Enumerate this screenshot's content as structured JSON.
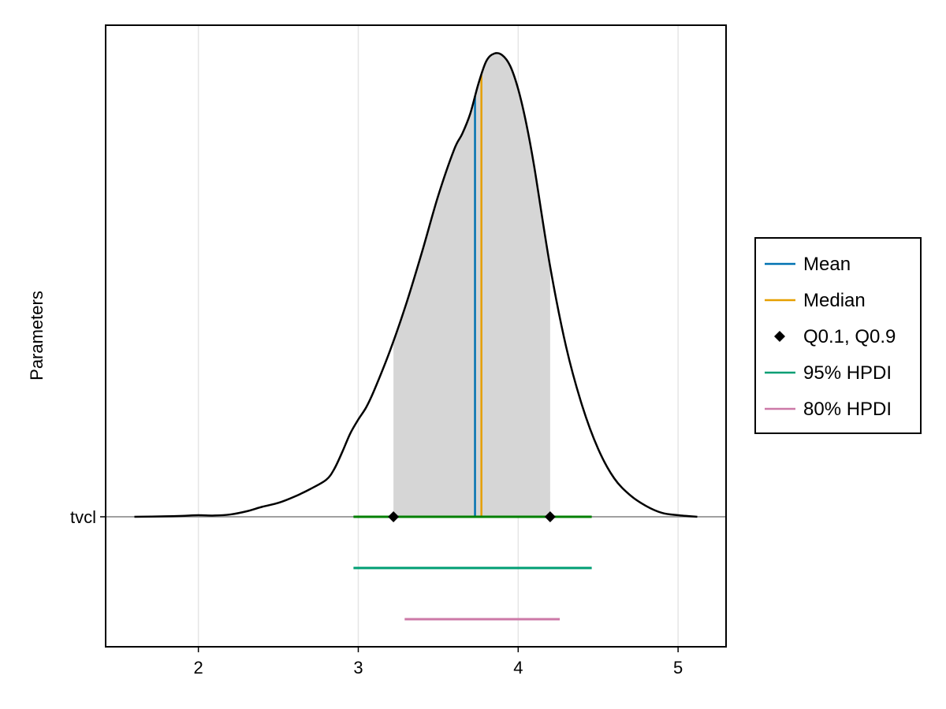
{
  "chart_data": {
    "type": "density",
    "title": "",
    "xlabel": "",
    "ylabel": "Parameters",
    "xlim": [
      1.42,
      5.3
    ],
    "xticks": [
      2,
      3,
      4,
      5
    ],
    "grid": true,
    "legend_position": "right",
    "parameter": {
      "name": "tvcl",
      "density": {
        "x": [
          1.6,
          1.8,
          1.9,
          2.0,
          2.1,
          2.2,
          2.3,
          2.4,
          2.5,
          2.6,
          2.7,
          2.8,
          2.85,
          2.9,
          2.95,
          3.0,
          3.05,
          3.1,
          3.2,
          3.3,
          3.4,
          3.5,
          3.6,
          3.65,
          3.7,
          3.75,
          3.8,
          3.85,
          3.9,
          3.95,
          4.0,
          4.05,
          4.1,
          4.2,
          4.3,
          4.4,
          4.5,
          4.6,
          4.7,
          4.8,
          4.9,
          5.0,
          5.12
        ],
        "y": [
          0.0,
          0.003,
          0.006,
          0.01,
          0.008,
          0.015,
          0.035,
          0.065,
          0.09,
          0.13,
          0.18,
          0.24,
          0.31,
          0.42,
          0.54,
          0.63,
          0.71,
          0.82,
          1.08,
          1.38,
          1.72,
          2.08,
          2.38,
          2.48,
          2.61,
          2.8,
          2.95,
          3.0,
          2.99,
          2.92,
          2.77,
          2.55,
          2.27,
          1.62,
          1.1,
          0.72,
          0.44,
          0.25,
          0.14,
          0.07,
          0.025,
          0.01,
          0.0
        ]
      },
      "shaded_interval": [
        3.22,
        4.2
      ],
      "mean": 3.73,
      "median": 3.77,
      "quantiles": [
        3.22,
        4.2
      ],
      "hpdi_95": [
        2.97,
        4.46
      ],
      "hpdi_80": [
        3.29,
        4.26
      ]
    },
    "legend": [
      {
        "label": "Mean",
        "symbol": "line",
        "color": "#0072B2"
      },
      {
        "label": "Median",
        "symbol": "line",
        "color": "#E69F00"
      },
      {
        "label": "Q0.1, Q0.9",
        "symbol": "diamond",
        "color": "#000000"
      },
      {
        "label": "95% HPDI",
        "symbol": "line",
        "color": "#009E73"
      },
      {
        "label": "80% HPDI",
        "symbol": "line",
        "color": "#CC79A7"
      }
    ],
    "colors": {
      "mean": "#0072B2",
      "median": "#E69F00",
      "hpdi_95": "#009E73",
      "hpdi_80": "#CC79A7",
      "baseline_interval": "#008000",
      "fill": "#D6D6D6",
      "density_line": "#000000"
    }
  }
}
